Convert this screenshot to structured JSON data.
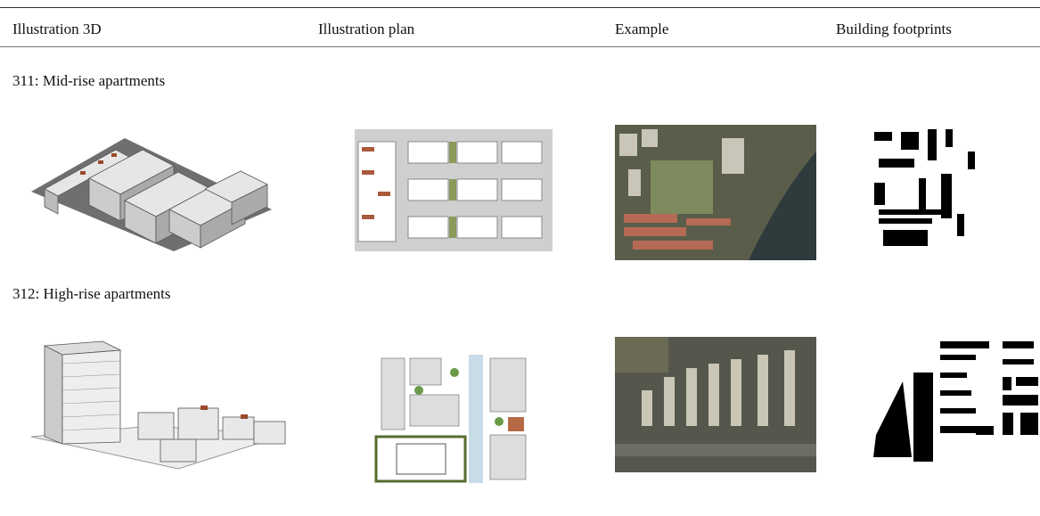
{
  "table": {
    "headers": [
      "Illustration 3D",
      "Illustration plan",
      "Example",
      "Building footprints"
    ],
    "rows": [
      {
        "label": "311: Mid-rise apartments"
      },
      {
        "label": "312: High-rise apartments"
      }
    ]
  }
}
